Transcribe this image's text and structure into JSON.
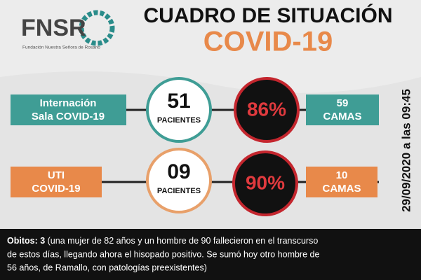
{
  "header": {
    "logo": "FNSR",
    "logo_subtitle": "Fundación Nuestra Señora de Rosario",
    "title": "CUADRO DE SITUACIÓN",
    "subtitle": "COVID-19"
  },
  "rows": [
    {
      "label": [
        "Internación",
        "Sala COVID-19"
      ],
      "count": "51",
      "count_unit": "PACIENTES",
      "percent": "86%",
      "beds": [
        "59",
        "CAMAS"
      ]
    },
    {
      "label": [
        "UTI",
        "COVID-19"
      ],
      "count": "09",
      "count_unit": "PACIENTES",
      "percent": "90%",
      "beds": [
        "10",
        "CAMAS"
      ]
    }
  ],
  "date": "29/09/2020 a las 09:45",
  "footer": {
    "lead": "Obitos: 3",
    "lines": [
      " (una mujer de 82 años y un hombre de 90 fallecieron en el transcurso",
      "de estos días, llegando ahora el hisopado positivo. Se sumó hoy otro hombre de",
      "56 años, de Ramallo, con patologías preexistentes)"
    ]
  }
}
